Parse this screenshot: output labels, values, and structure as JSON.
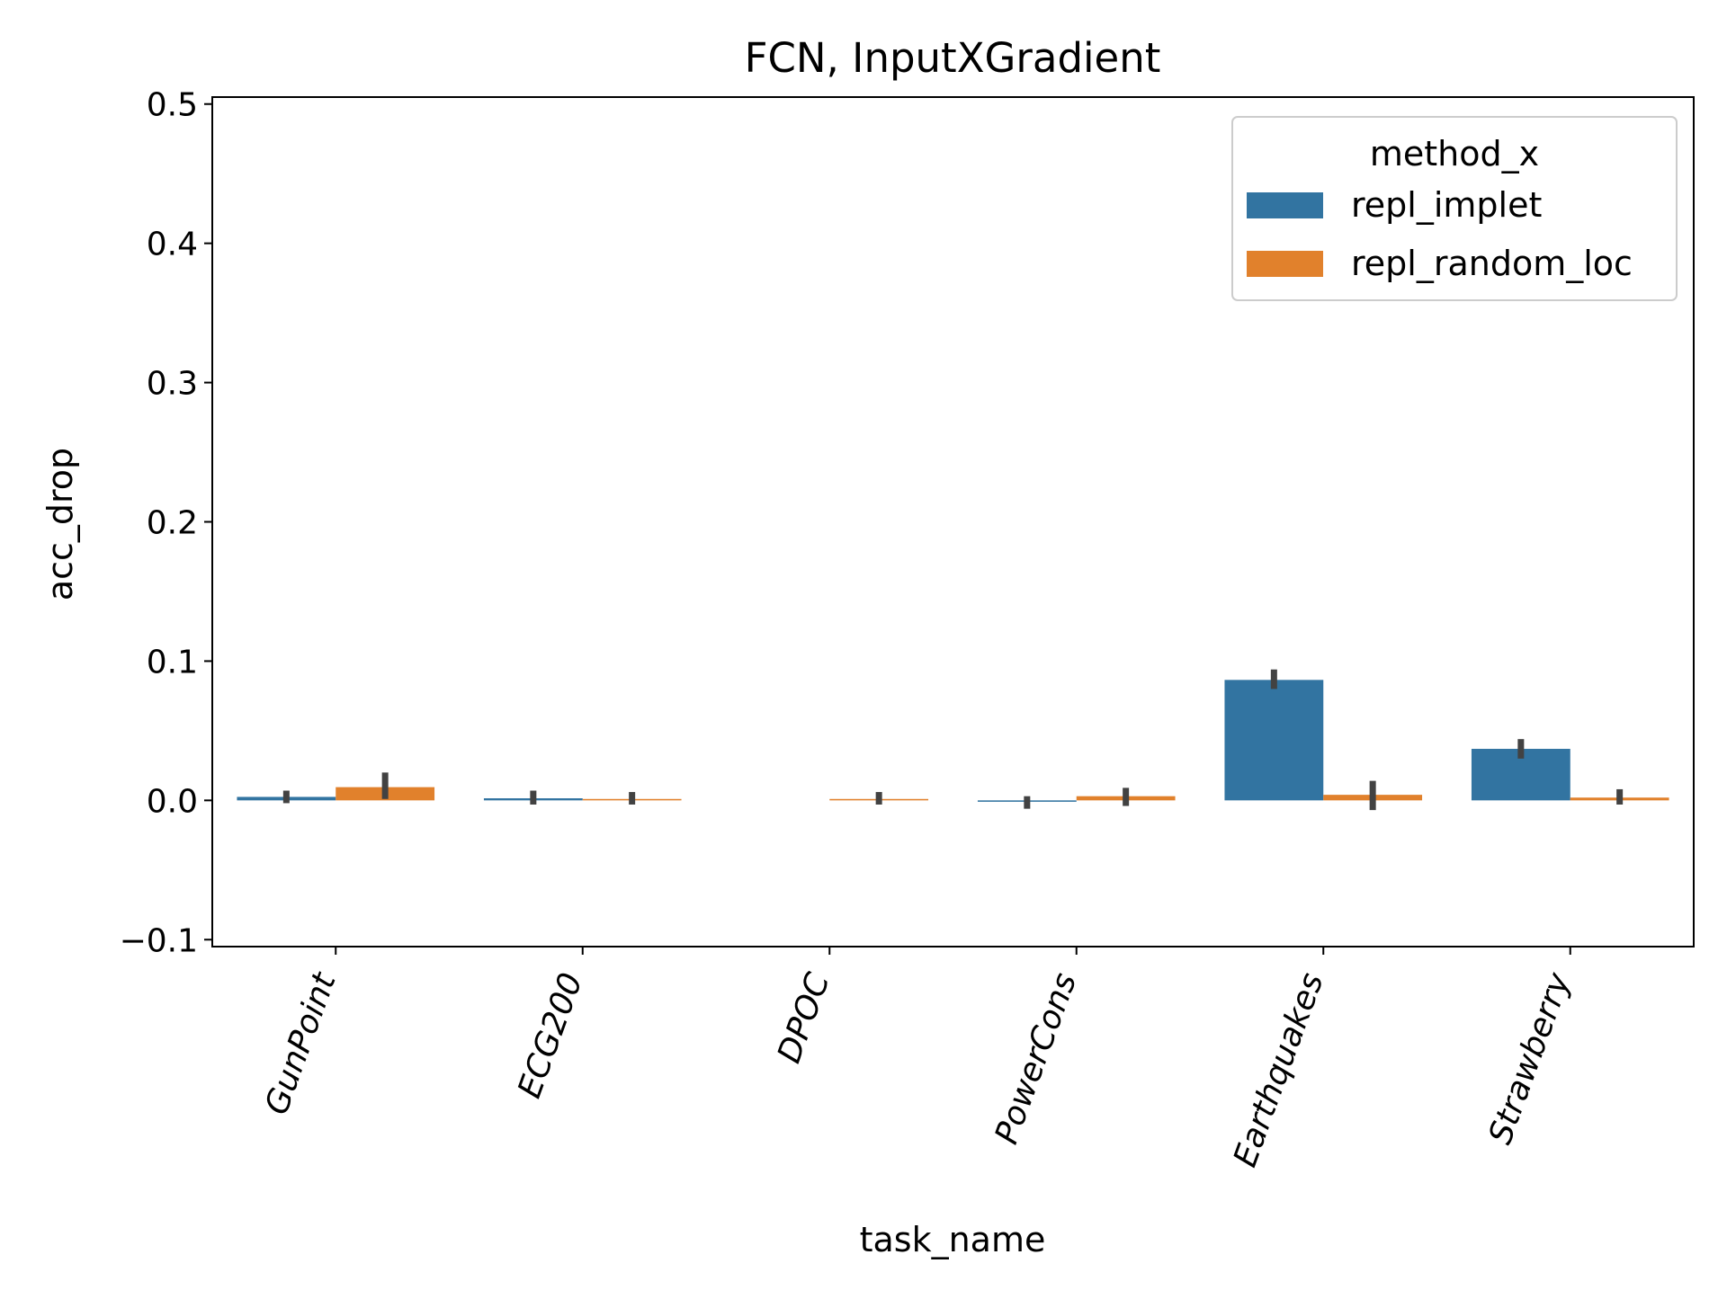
{
  "chart_data": {
    "type": "bar",
    "title": "FCN, InputXGradient",
    "xlabel": "task_name",
    "ylabel": "acc_drop",
    "ylim": [
      -0.105,
      0.505
    ],
    "yticks": [
      -0.1,
      0.0,
      0.1,
      0.2,
      0.3,
      0.4,
      0.5
    ],
    "ytick_labels": [
      "−0.1",
      "0.0",
      "0.1",
      "0.2",
      "0.3",
      "0.4",
      "0.5"
    ],
    "categories": [
      "GunPoint",
      "ECG200",
      "DPOC",
      "PowerCons",
      "Earthquakes",
      "Strawberry"
    ],
    "legend": {
      "title": "method_x",
      "position": "top-right"
    },
    "grid": false,
    "series": [
      {
        "name": "repl_implet",
        "color": "#3274a1",
        "values": [
          0.0025,
          0.0015,
          0.0,
          -0.001,
          0.0865,
          0.037
        ],
        "err_low": [
          -0.002,
          -0.003,
          0.0,
          -0.006,
          0.08,
          0.03
        ],
        "err_high": [
          0.007,
          0.007,
          0.0,
          0.003,
          0.094,
          0.044
        ]
      },
      {
        "name": "repl_random_loc",
        "color": "#e1812c",
        "values": [
          0.0095,
          0.001,
          0.001,
          0.003,
          0.004,
          0.002
        ],
        "err_low": [
          0.001,
          -0.003,
          -0.003,
          -0.004,
          -0.007,
          -0.003
        ],
        "err_high": [
          0.02,
          0.006,
          0.006,
          0.009,
          0.014,
          0.008
        ]
      }
    ]
  }
}
